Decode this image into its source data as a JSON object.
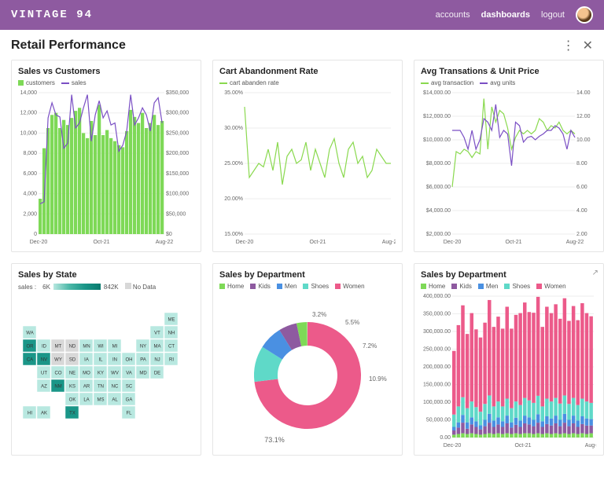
{
  "header": {
    "brand": "VINTAGE 94",
    "nav": {
      "accounts": "accounts",
      "dashboards": "dashboards",
      "logout": "logout"
    }
  },
  "page": {
    "title": "Retail Performance"
  },
  "colors": {
    "accent_purple": "#8e5aa0",
    "bar_green": "#7ed957",
    "line_purple": "#7a4fc4",
    "line_green": "#8ad94f",
    "card_border": "#e5e5e5",
    "grid": "#eeeeee",
    "text": "#222222",
    "muted": "#666666"
  },
  "charts": {
    "sales_vs_customers": {
      "title": "Sales vs Customers",
      "legend": [
        {
          "label": "customers",
          "color": "#7ed957",
          "type": "bar"
        },
        {
          "label": "sales",
          "color": "#7a4fc4",
          "type": "line"
        }
      ],
      "x_ticks": [
        "Dec-20",
        "Oct-21",
        "Aug-22"
      ],
      "y_left": {
        "min": 0,
        "max": 14000,
        "step": 2000
      },
      "y_right": {
        "min": 0,
        "max": 350000,
        "step": 50000,
        "prefix": "$"
      },
      "bars": [
        3500,
        8500,
        10500,
        11800,
        12000,
        10500,
        11300,
        10800,
        11500,
        12200,
        12500,
        10000,
        9500,
        11200,
        9800,
        12800,
        9800,
        10300,
        9500,
        9200,
        8800,
        8600,
        10200,
        12300,
        11600,
        11000,
        12000,
        10500,
        11000,
        11800,
        10800,
        11200
      ],
      "line": [
        3000,
        3200,
        11500,
        13000,
        11800,
        11600,
        8500,
        9000,
        13800,
        10500,
        11000,
        12500,
        13800,
        9200,
        11800,
        13200,
        11500,
        12200,
        10800,
        11000,
        8200,
        8800,
        10200,
        13800,
        10800,
        11500,
        12500,
        11800,
        10200,
        13000,
        13500,
        11000
      ]
    },
    "cart_abandon": {
      "title": "Cart Abandonment Rate",
      "legend": [
        {
          "label": "cart abanden rate",
          "color": "#8ad94f",
          "type": "line"
        }
      ],
      "x_ticks": [
        "Dec-20",
        "Oct-21",
        "Aug-22"
      ],
      "y": {
        "min": 15,
        "max": 35,
        "step": 5,
        "suffix": ".00%"
      },
      "line": [
        33,
        23,
        24,
        25,
        24.5,
        27,
        24,
        28,
        22,
        26,
        27,
        25,
        25.5,
        28,
        24,
        27,
        25,
        23,
        27,
        28.5,
        25,
        23,
        27,
        28,
        25,
        26,
        23,
        24,
        27,
        26,
        25,
        25
      ]
    },
    "avg_trans": {
      "title": "Avg Transations & Unit Price",
      "legend": [
        {
          "label": "avg transaction",
          "color": "#8ad94f",
          "type": "line"
        },
        {
          "label": "avg units",
          "color": "#7a4fc4",
          "type": "line"
        }
      ],
      "x_ticks": [
        "Dec-20",
        "Oct-21",
        "Aug-22"
      ],
      "y_left": {
        "min": 2000,
        "max": 14000,
        "step": 2000,
        "prefix": "$",
        "suffix": ".00"
      },
      "y_right": {
        "min": 2,
        "max": 14,
        "step": 2,
        "suffix": ".00"
      },
      "green": [
        6000,
        9000,
        8800,
        9200,
        9000,
        8500,
        9000,
        8800,
        13500,
        9200,
        12800,
        11500,
        12500,
        12200,
        11000,
        9200,
        10200,
        10800,
        10500,
        10800,
        10500,
        10800,
        11800,
        11500,
        10800,
        11200,
        11000,
        11500,
        10800,
        10500,
        10800,
        10500
      ],
      "purple": [
        10800,
        10800,
        10800,
        10200,
        9200,
        10800,
        9200,
        10000,
        11800,
        11500,
        10800,
        13000,
        10200,
        10800,
        10500,
        7800,
        11500,
        11200,
        9800,
        10200,
        10300,
        10000,
        10300,
        10500,
        10800,
        10800,
        11200,
        11000,
        10500,
        9200,
        10800,
        10200
      ]
    },
    "sales_by_state": {
      "title": "Sales by State",
      "legend_label": "sales :",
      "min_label": "6K",
      "max_label": "842K",
      "nodata_label": "No Data",
      "gradient": [
        "#b8e8e0",
        "#0a7a6e"
      ],
      "nodata_color": "#d8d8d8",
      "state_color_default": "#b8e8e0",
      "highlighted_states_color": "#1a9688",
      "state_label_color": "#333333"
    },
    "donut": {
      "title": "Sales by Department",
      "legend": [
        {
          "label": "Home",
          "color": "#7ed957"
        },
        {
          "label": "Kids",
          "color": "#8e5aa0"
        },
        {
          "label": "Men",
          "color": "#4a90e2"
        },
        {
          "label": "Shoes",
          "color": "#5fd9c8"
        },
        {
          "label": "Women",
          "color": "#ec5a8a"
        }
      ],
      "slices": [
        {
          "label": "Women",
          "value": 73.1,
          "color": "#ec5a8a"
        },
        {
          "label": "Shoes",
          "value": 10.9,
          "color": "#5fd9c8"
        },
        {
          "label": "Men",
          "value": 7.2,
          "color": "#4a90e2"
        },
        {
          "label": "Kids",
          "value": 5.5,
          "color": "#8e5aa0"
        },
        {
          "label": "Home",
          "value": 3.2,
          "color": "#7ed957"
        }
      ],
      "labels": {
        "women": "73.1%",
        "shoes": "10.9%",
        "men": "7.2%",
        "kids": "5.5%",
        "home": "3.2%"
      }
    },
    "stacked": {
      "title": "Sales by Department",
      "legend": [
        {
          "label": "Home",
          "color": "#7ed957"
        },
        {
          "label": "Kids",
          "color": "#8e5aa0"
        },
        {
          "label": "Men",
          "color": "#4a90e2"
        },
        {
          "label": "Shoes",
          "color": "#5fd9c8"
        },
        {
          "label": "Women",
          "color": "#ec5a8a"
        }
      ],
      "x_ticks": [
        "Dec-20",
        "Oct-21",
        "Aug-22"
      ],
      "y": {
        "min": 0,
        "max": 400000,
        "step": 50000,
        "suffix": ".00"
      },
      "bars": [
        [
          8,
          12,
          10,
          35,
          180
        ],
        [
          10,
          18,
          15,
          45,
          230
        ],
        [
          12,
          30,
          22,
          50,
          260
        ],
        [
          10,
          15,
          18,
          40,
          210
        ],
        [
          12,
          25,
          20,
          45,
          250
        ],
        [
          10,
          20,
          16,
          40,
          220
        ],
        [
          8,
          15,
          12,
          38,
          210
        ],
        [
          10,
          22,
          18,
          45,
          230
        ],
        [
          12,
          30,
          25,
          52,
          270
        ],
        [
          10,
          20,
          18,
          40,
          225
        ],
        [
          12,
          25,
          20,
          45,
          240
        ],
        [
          10,
          20,
          16,
          42,
          220
        ],
        [
          12,
          28,
          22,
          48,
          260
        ],
        [
          10,
          18,
          15,
          40,
          225
        ],
        [
          12,
          24,
          20,
          46,
          245
        ],
        [
          10,
          20,
          18,
          44,
          260
        ],
        [
          12,
          28,
          22,
          50,
          270
        ],
        [
          12,
          25,
          20,
          48,
          250
        ],
        [
          10,
          22,
          18,
          48,
          255
        ],
        [
          12,
          30,
          24,
          52,
          280
        ],
        [
          10,
          20,
          16,
          42,
          225
        ],
        [
          12,
          26,
          22,
          50,
          260
        ],
        [
          10,
          24,
          20,
          48,
          250
        ],
        [
          12,
          28,
          22,
          50,
          265
        ],
        [
          10,
          22,
          18,
          46,
          240
        ],
        [
          12,
          30,
          25,
          52,
          275
        ],
        [
          10,
          22,
          18,
          45,
          235
        ],
        [
          12,
          28,
          22,
          50,
          260
        ],
        [
          10,
          20,
          18,
          44,
          240
        ],
        [
          12,
          26,
          22,
          50,
          270
        ],
        [
          10,
          24,
          20,
          48,
          250
        ],
        [
          12,
          22,
          18,
          46,
          245
        ]
      ]
    }
  }
}
